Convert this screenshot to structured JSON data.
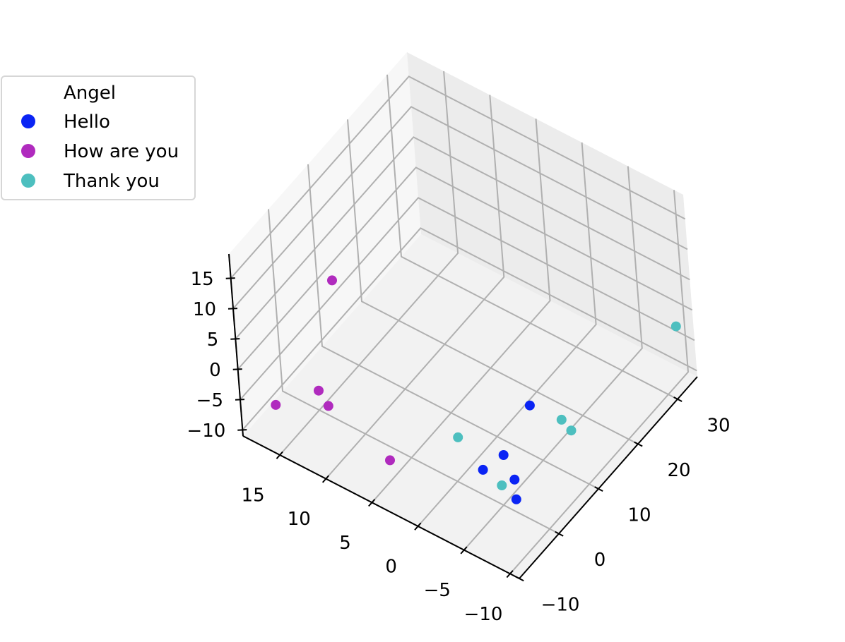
{
  "chart_data": {
    "type": "scatter3d",
    "legend": {
      "title": "Angel",
      "placement": "upper-left"
    },
    "axes": {
      "x": {
        "label": "",
        "ticks": [
          -10,
          0,
          10,
          20,
          30
        ],
        "tick_labels": [
          "−10",
          "0",
          "10",
          "20",
          "30"
        ],
        "range": [
          -10,
          35
        ]
      },
      "y": {
        "label": "",
        "ticks": [
          -10,
          -5,
          0,
          5,
          10,
          15
        ],
        "tick_labels": [
          "−10",
          "−5",
          "0",
          "5",
          "10",
          "15"
        ],
        "range": [
          -11,
          19
        ]
      },
      "z": {
        "label": "",
        "ticks": [
          -10,
          -5,
          0,
          5,
          10,
          15
        ],
        "tick_labels": [
          "−10",
          "−5",
          "0",
          "5",
          "10",
          "15"
        ],
        "range": [
          -11,
          19
        ]
      },
      "grid": true
    },
    "series": [
      {
        "name": "Hello",
        "color": "#0a24f4",
        "points": [
          {
            "x": 2,
            "y": -2,
            "z": -9
          },
          {
            "x": 5,
            "y": -3,
            "z": -8
          },
          {
            "x": 3,
            "y": -5,
            "z": -9
          },
          {
            "x": 12,
            "y": -3,
            "z": -5
          },
          {
            "x": 1,
            "y": -6,
            "z": -10
          }
        ]
      },
      {
        "name": "How are you",
        "color": "#b02bbe",
        "points": [
          {
            "x": -8,
            "y": 16,
            "z": -5
          },
          {
            "x": -6,
            "y": 12,
            "z": -1
          },
          {
            "x": -4,
            "y": 12,
            "z": -5
          },
          {
            "x": -3,
            "y": 6,
            "z": -10
          },
          {
            "x": -5,
            "y": 10,
            "z": 18
          }
        ]
      },
      {
        "name": "Thank you",
        "color": "#4dbfbf",
        "points": [
          {
            "x": 5,
            "y": 2,
            "z": -9
          },
          {
            "x": 2,
            "y": -4,
            "z": -10
          },
          {
            "x": 15,
            "y": -5,
            "z": -8
          },
          {
            "x": 15,
            "y": -6,
            "z": -9
          },
          {
            "x": 33,
            "y": -10,
            "z": -2
          }
        ]
      }
    ]
  }
}
